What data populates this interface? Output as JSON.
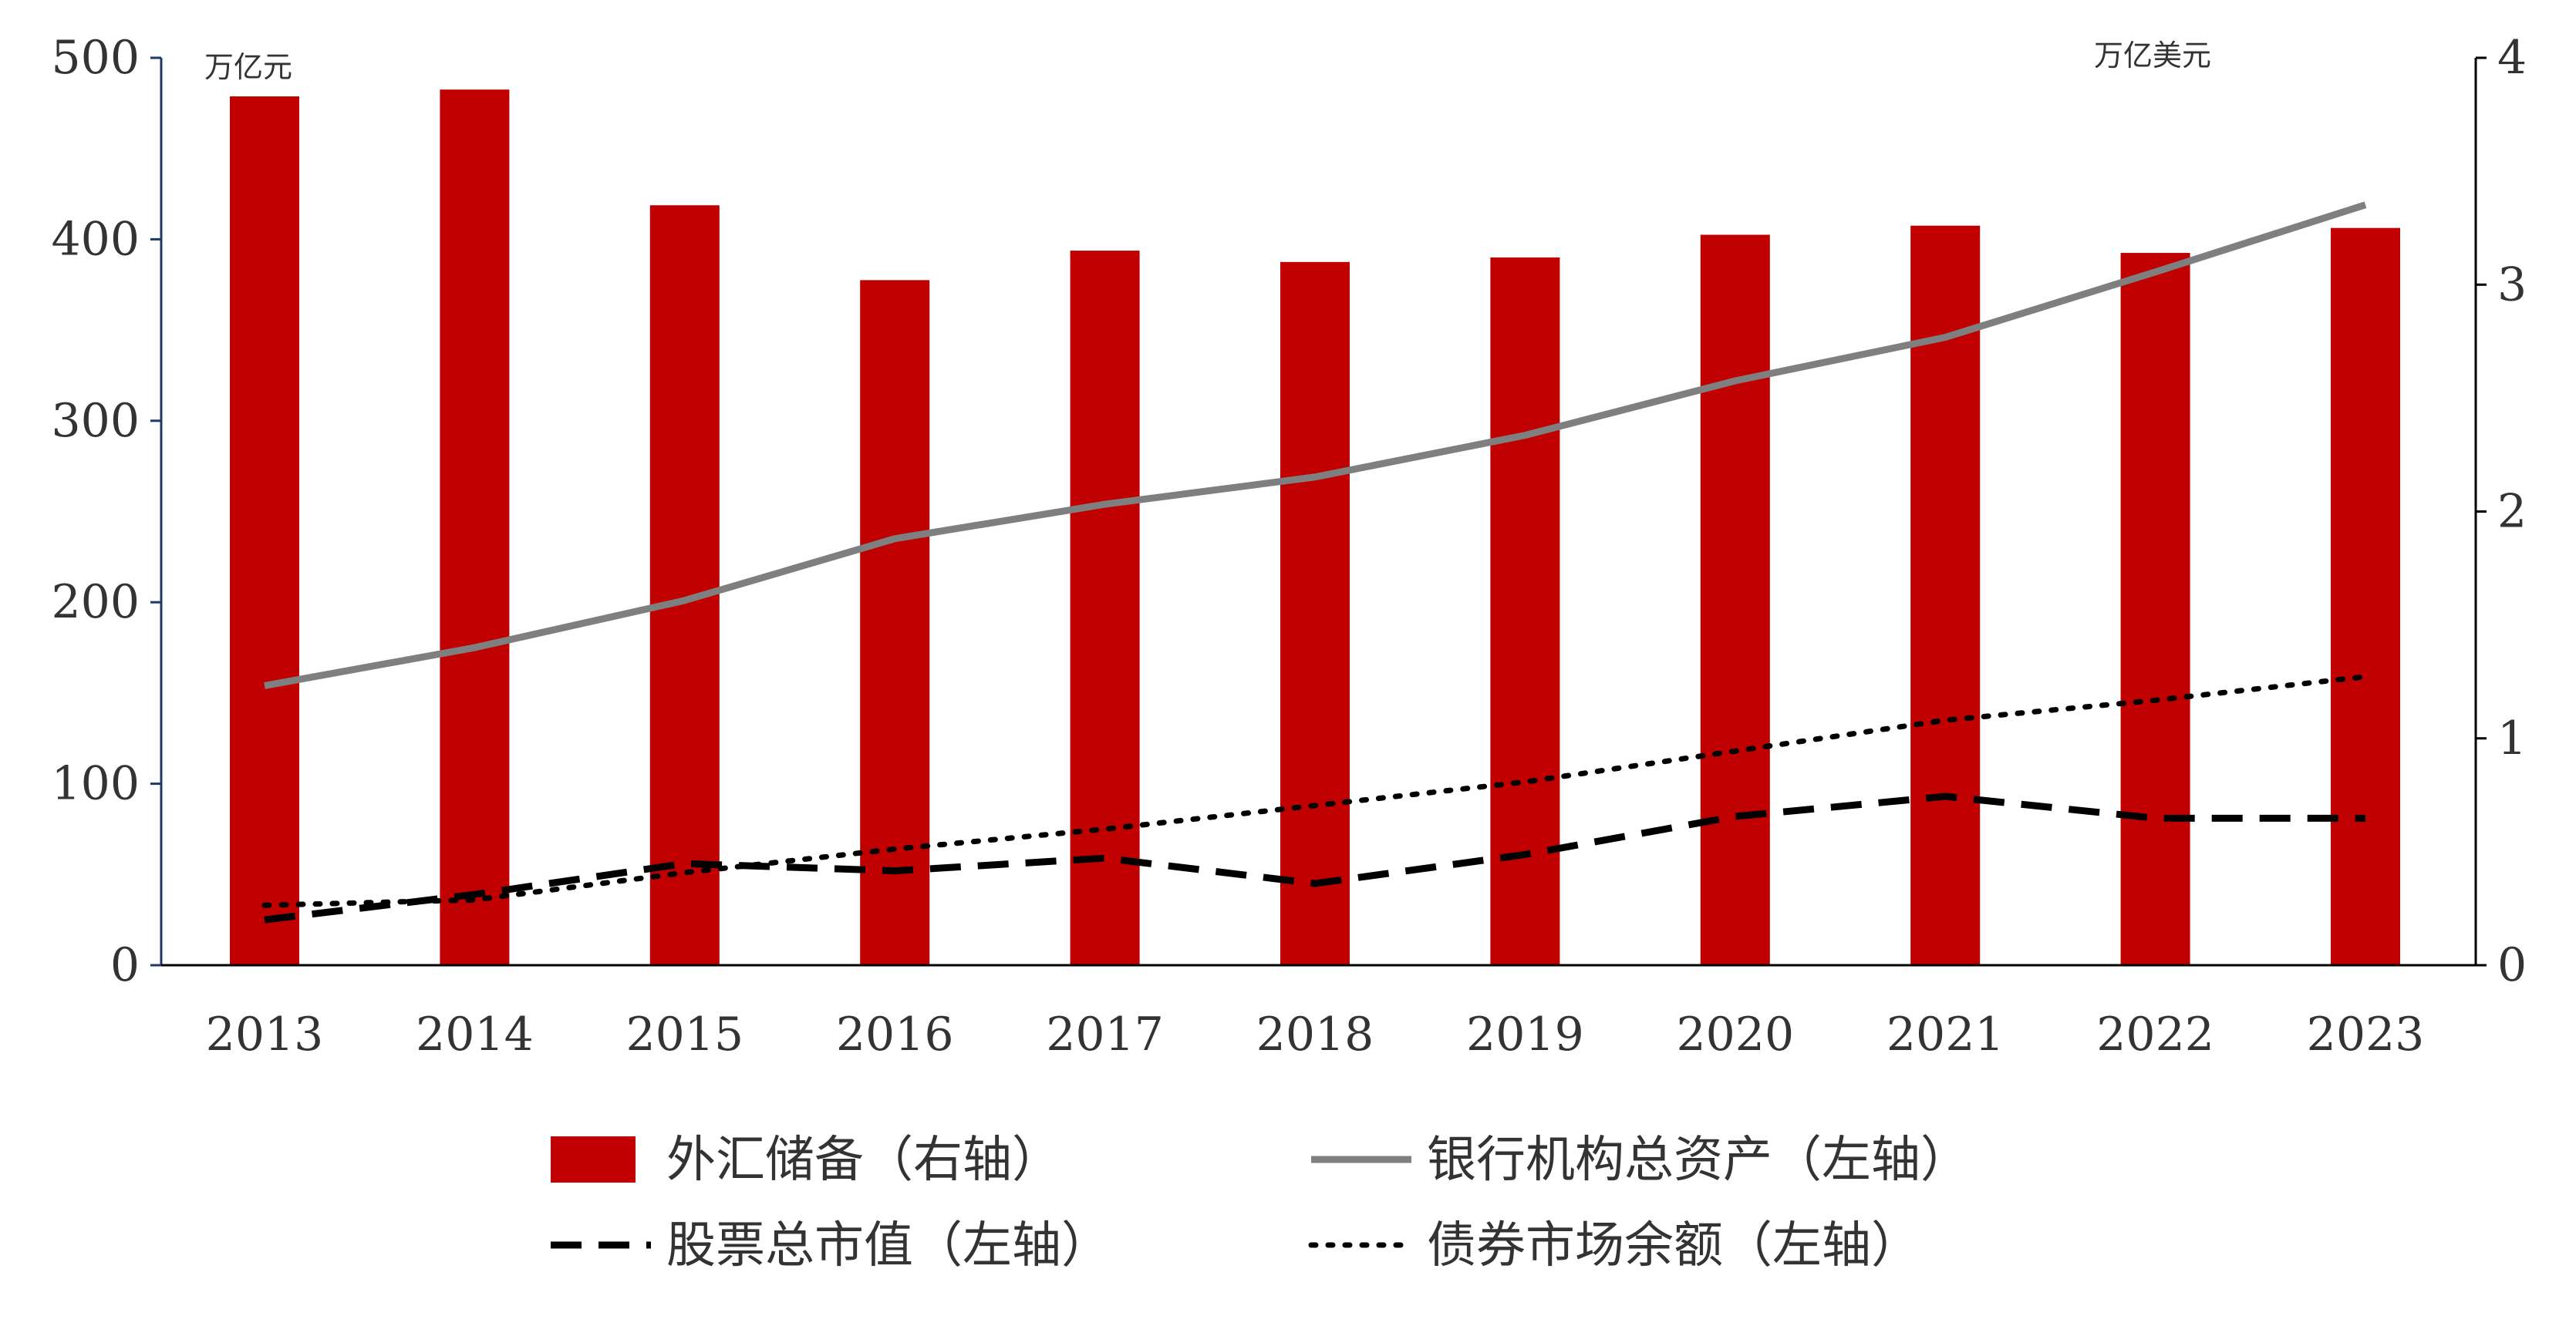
{
  "chart_data": {
    "type": "bar",
    "categories": [
      "2013",
      "2014",
      "2015",
      "2016",
      "2017",
      "2018",
      "2019",
      "2020",
      "2021",
      "2022",
      "2023"
    ],
    "left_axis": {
      "unit": "万亿元",
      "ylim": [
        0,
        500
      ],
      "ticks": [
        "0",
        "100",
        "200",
        "300",
        "400",
        "500"
      ]
    },
    "right_axis": {
      "unit": "万亿美元",
      "ylim": [
        0,
        4
      ],
      "ticks": [
        "0",
        "1",
        "2",
        "3",
        "4"
      ]
    },
    "grid": false,
    "legend_placement": "bottom",
    "series": [
      {
        "name": "外汇储备（右轴）",
        "type": "bar",
        "axis": "right",
        "color": "#c00000",
        "values": [
          3.83,
          3.86,
          3.35,
          3.02,
          3.15,
          3.1,
          3.12,
          3.22,
          3.26,
          3.14,
          3.25
        ]
      },
      {
        "name": "银行机构总资产（左轴）",
        "type": "line",
        "style": "solid",
        "axis": "left",
        "color": "#7f7f7f",
        "values": [
          154,
          175,
          201,
          235,
          254,
          269,
          292,
          322,
          346,
          382,
          419
        ]
      },
      {
        "name": "股票总市值（左轴）",
        "type": "line",
        "style": "dashed",
        "axis": "left",
        "color": "#000000",
        "values": [
          25,
          39,
          56,
          52,
          59,
          45,
          61,
          82,
          93,
          81,
          81
        ]
      },
      {
        "name": "债券市场余额（左轴）",
        "type": "line",
        "style": "dotted",
        "axis": "left",
        "color": "#000000",
        "values": [
          33,
          36,
          51,
          64,
          75,
          88,
          101,
          118,
          135,
          146,
          159
        ]
      }
    ]
  }
}
